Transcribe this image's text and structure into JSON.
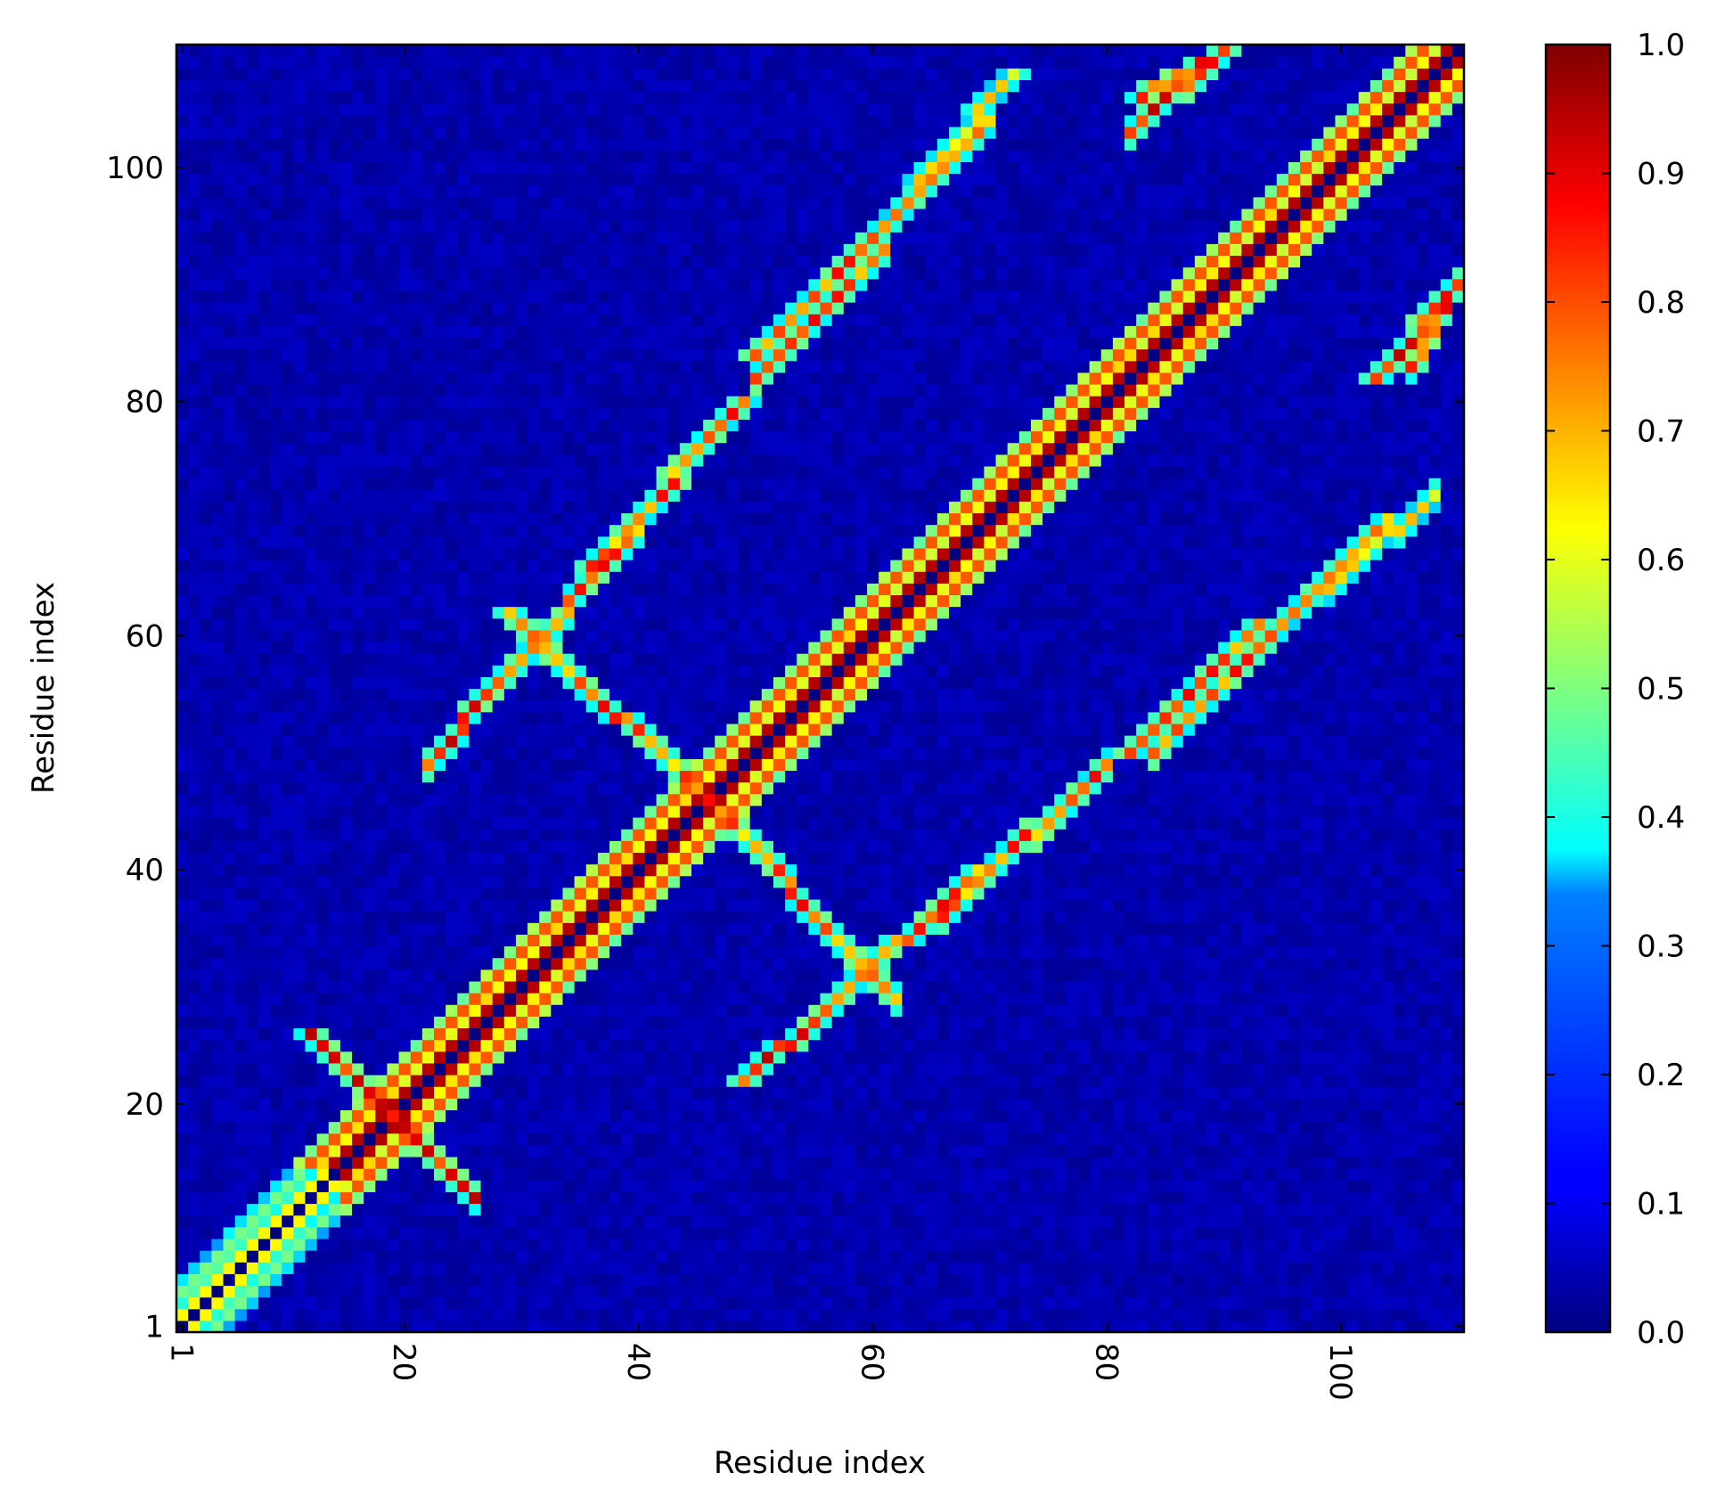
{
  "chart_data": {
    "type": "heatmap",
    "title": "",
    "xlabel": "Residue index",
    "ylabel": "Residue index",
    "x_range": [
      1,
      110
    ],
    "y_range": [
      1,
      110
    ],
    "x_ticks": [
      1,
      20,
      40,
      60,
      80,
      100
    ],
    "y_ticks": [
      1,
      20,
      40,
      60,
      80,
      100
    ],
    "x_tick_labels": [
      "1",
      "20",
      "40",
      "60",
      "80",
      "100"
    ],
    "y_tick_labels": [
      "1",
      "20",
      "40",
      "60",
      "80",
      "100"
    ],
    "x_tick_rotation": "vertical (90° clockwise)",
    "colormap": "jet",
    "colorbar": {
      "range": [
        0.0,
        1.0
      ],
      "ticks": [
        0.0,
        0.1,
        0.2,
        0.3,
        0.4,
        0.5,
        0.6,
        0.7,
        0.8,
        0.9,
        1.0
      ],
      "tick_labels": [
        "0.0",
        "0.1",
        "0.2",
        "0.3",
        "0.4",
        "0.5",
        "0.6",
        "0.7",
        "0.8",
        "0.9",
        "1.0"
      ],
      "placement": "right"
    },
    "grid": false,
    "diagonal_value": 0.0,
    "structure_description_values": {
      "near_diagonal_band_high": 0.95,
      "off_diagonal_contacts_high": 0.9,
      "background": 0.02
    },
    "contact_segments": [
      {
        "x": [
          12,
          24
        ],
        "y": [
          26,
          14
        ],
        "peak": 0.9
      },
      {
        "x": [
          29,
          48
        ],
        "y": [
          62,
          44
        ],
        "peak": 0.85
      },
      {
        "x": [
          49,
          55
        ],
        "y": [
          22,
          27
        ],
        "peak": 0.9
      },
      {
        "x": [
          56,
          69
        ],
        "y": [
          28,
          40
        ],
        "peak": 0.85
      },
      {
        "x": [
          82,
          93
        ],
        "y": [
          50,
          61
        ],
        "peak": 0.85
      },
      {
        "x": [
          96,
          104
        ],
        "y": [
          62,
          70
        ],
        "peak": 0.8
      },
      {
        "x": [
          36,
          49
        ],
        "y": [
          66,
          80
        ],
        "peak": 0.85
      },
      {
        "x": [
          50,
          60
        ],
        "y": [
          84,
          94
        ],
        "peak": 0.85
      },
      {
        "x": [
          83,
          90
        ],
        "y": [
          106,
          110
        ],
        "peak": 0.9
      },
      {
        "x": [
          103,
          110
        ],
        "y": [
          82,
          90
        ],
        "peak": 0.9
      },
      {
        "x": [
          61,
          72
        ],
        "y": [
          95,
          108
        ],
        "peak": 0.75
      }
    ]
  }
}
